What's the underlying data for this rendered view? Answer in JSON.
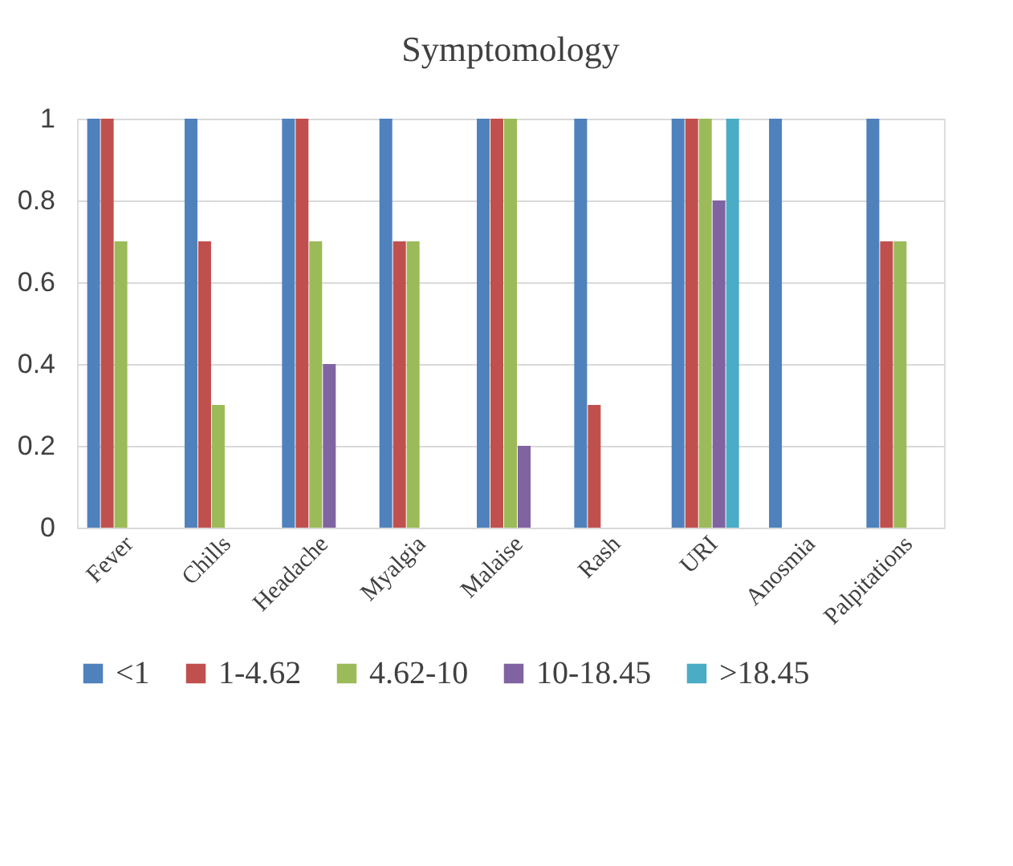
{
  "chart_data": {
    "type": "bar",
    "title": "Symptomology",
    "categories": [
      "Fever",
      "Chills",
      "Headache",
      "Myalgia",
      "Malaise",
      "Rash",
      "URI",
      "Anosmia",
      "Palpitations"
    ],
    "series": [
      {
        "name": "<1",
        "color": "#4f81bd",
        "values": [
          1,
          1,
          1,
          1,
          1,
          1,
          1,
          1,
          1
        ]
      },
      {
        "name": "1-4.62",
        "color": "#c0504d",
        "values": [
          1,
          0.7,
          1,
          0.7,
          1,
          0.3,
          1,
          0,
          0.7
        ]
      },
      {
        "name": "4.62-10",
        "color": "#9bbb59",
        "values": [
          0.7,
          0.3,
          0.7,
          0.7,
          1,
          0,
          1,
          0,
          0.7
        ]
      },
      {
        "name": "10-18.45",
        "color": "#8064a2",
        "values": [
          0,
          0,
          0.4,
          0,
          0.2,
          0,
          0.8,
          0,
          0
        ]
      },
      {
        "name": ">18.45",
        "color": "#4bacc6",
        "values": [
          0,
          0,
          0,
          0,
          0,
          0,
          1,
          0,
          0
        ]
      }
    ],
    "ylim": [
      0,
      1
    ],
    "yticks": [
      0,
      0.2,
      0.4,
      0.6,
      0.8,
      1
    ],
    "grid": "y",
    "legend": "bottom"
  }
}
